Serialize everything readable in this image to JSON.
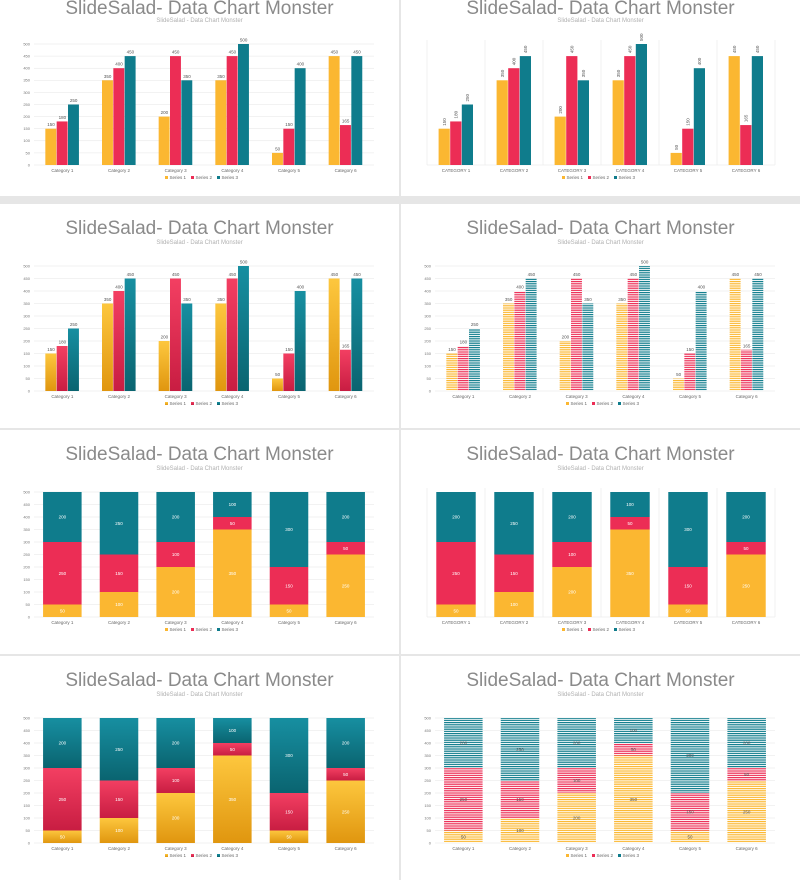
{
  "colors": {
    "series_1": "#fbb731",
    "series_2": "#ec2d55",
    "series_3": "#0f7c8c",
    "grid": "#e4e4e4"
  },
  "slides": [
    {
      "title": "SlideSalad- Data Chart Monster",
      "subtitle": "SlideSalad - Data Chart Monster"
    },
    {
      "title": "SlideSalad- Data Chart Monster",
      "subtitle": "SlideSalad - Data Chart Monster"
    },
    {
      "title": "SlideSalad- Data Chart Monster",
      "subtitle": "SlideSalad - Data Chart Monster"
    },
    {
      "title": "SlideSalad- Data Chart Monster",
      "subtitle": "SlideSalad - Data Chart Monster"
    },
    {
      "title": "SlideSalad- Data Chart Monster",
      "subtitle": "SlideSalad - Data Chart Monster"
    },
    {
      "title": "SlideSalad- Data Chart Monster",
      "subtitle": "SlideSalad - Data Chart Monster"
    },
    {
      "title": "SlideSalad- Data Chart Monster",
      "subtitle": "SlideSalad - Data Chart Monster"
    },
    {
      "title": "SlideSalad- Data Chart Monster",
      "subtitle": "SlideSalad - Data Chart Monster"
    }
  ],
  "chart_data": [
    {
      "type": "bar",
      "mode": "clustered",
      "style": "flat",
      "categories": [
        "Category 1",
        "Category 2",
        "Category 3",
        "Category 4",
        "Category 5",
        "Category 6"
      ],
      "series": [
        {
          "name": "Series 1",
          "values": [
            150,
            350,
            200,
            350,
            50,
            450
          ]
        },
        {
          "name": "Series 2",
          "values": [
            180,
            400,
            450,
            450,
            150,
            165
          ]
        },
        {
          "name": "Series 3",
          "values": [
            250,
            450,
            350,
            500,
            400,
            450
          ]
        }
      ],
      "ylim": [
        0,
        500
      ],
      "yticks": [
        0,
        50,
        100,
        150,
        200,
        250,
        300,
        350,
        400,
        450,
        500
      ],
      "legend": "bottom",
      "grid": true
    },
    {
      "type": "bar",
      "mode": "clustered",
      "style": "flat-vertical-labels",
      "categories": [
        "CATEGORY 1",
        "CATEGORY 2",
        "CATEGORY 3",
        "CATEGORY 4",
        "CATEGORY 5",
        "CATEGORY 6"
      ],
      "series": [
        {
          "name": "Series 1",
          "values": [
            150,
            350,
            200,
            350,
            50,
            450
          ]
        },
        {
          "name": "Series 2",
          "values": [
            180,
            400,
            450,
            450,
            150,
            165
          ]
        },
        {
          "name": "Series 3",
          "values": [
            250,
            450,
            350,
            500,
            400,
            450
          ]
        }
      ],
      "ylim": [
        0,
        500
      ],
      "legend": "bottom",
      "grid": false
    },
    {
      "type": "bar",
      "mode": "clustered",
      "style": "gradient",
      "categories": [
        "Category 1",
        "Category 2",
        "Category 3",
        "Category 4",
        "Category 5",
        "Category 6"
      ],
      "series": [
        {
          "name": "Series 1",
          "values": [
            150,
            350,
            200,
            350,
            50,
            450
          ]
        },
        {
          "name": "Series 2",
          "values": [
            180,
            400,
            450,
            450,
            150,
            165
          ]
        },
        {
          "name": "Series 3",
          "values": [
            250,
            450,
            350,
            500,
            400,
            450
          ]
        }
      ],
      "ylim": [
        0,
        500
      ],
      "yticks": [
        0,
        50,
        100,
        150,
        200,
        250,
        300,
        350,
        400,
        450,
        500
      ],
      "legend": "bottom",
      "grid": true
    },
    {
      "type": "bar",
      "mode": "clustered",
      "style": "striped",
      "categories": [
        "Category 1",
        "Category 2",
        "Category 3",
        "Category 4",
        "Category 5",
        "Category 6"
      ],
      "series": [
        {
          "name": "Series 1",
          "values": [
            150,
            350,
            200,
            350,
            50,
            450
          ]
        },
        {
          "name": "Series 2",
          "values": [
            180,
            400,
            450,
            450,
            150,
            165
          ]
        },
        {
          "name": "Series 3",
          "values": [
            250,
            450,
            350,
            500,
            400,
            450
          ]
        }
      ],
      "ylim": [
        0,
        500
      ],
      "yticks": [
        0,
        50,
        100,
        150,
        200,
        250,
        300,
        350,
        400,
        450,
        500
      ],
      "legend": "bottom",
      "grid": true
    },
    {
      "type": "bar",
      "mode": "stacked",
      "style": "flat",
      "categories": [
        "Category 1",
        "Category 2",
        "Category 3",
        "Category 4",
        "Category 5",
        "Category 6"
      ],
      "series": [
        {
          "name": "Series 1",
          "values": [
            50,
            100,
            200,
            350,
            50,
            250
          ]
        },
        {
          "name": "Series 2",
          "values": [
            250,
            150,
            100,
            50,
            150,
            50
          ]
        },
        {
          "name": "Series 3",
          "values": [
            200,
            250,
            200,
            100,
            300,
            200
          ]
        }
      ],
      "ylim": [
        0,
        500
      ],
      "yticks": [
        0,
        50,
        100,
        150,
        200,
        250,
        300,
        350,
        400,
        450,
        500
      ],
      "legend": "bottom",
      "grid": true
    },
    {
      "type": "bar",
      "mode": "stacked",
      "style": "flat-vertical-labels",
      "categories": [
        "CATEGORY 1",
        "CATEGORY 2",
        "CATEGORY 3",
        "CATEGORY 4",
        "CATEGORY 5",
        "CATEGORY 6"
      ],
      "series": [
        {
          "name": "Series 1",
          "values": [
            50,
            100,
            200,
            350,
            50,
            250
          ]
        },
        {
          "name": "Series 2",
          "values": [
            250,
            150,
            100,
            50,
            150,
            50
          ]
        },
        {
          "name": "Series 3",
          "values": [
            200,
            250,
            200,
            100,
            300,
            200
          ]
        }
      ],
      "ylim": [
        0,
        500
      ],
      "legend": "bottom",
      "grid": false
    },
    {
      "type": "bar",
      "mode": "stacked",
      "style": "gradient",
      "categories": [
        "Category 1",
        "Category 2",
        "Category 3",
        "Category 4",
        "Category 5",
        "Category 6"
      ],
      "series": [
        {
          "name": "Series 1",
          "values": [
            50,
            100,
            200,
            350,
            50,
            250
          ]
        },
        {
          "name": "Series 2",
          "values": [
            250,
            150,
            100,
            50,
            150,
            50
          ]
        },
        {
          "name": "Series 3",
          "values": [
            200,
            250,
            200,
            100,
            300,
            200
          ]
        }
      ],
      "ylim": [
        0,
        500
      ],
      "yticks": [
        0,
        50,
        100,
        150,
        200,
        250,
        300,
        350,
        400,
        450,
        500
      ],
      "legend": "bottom",
      "grid": true
    },
    {
      "type": "bar",
      "mode": "stacked",
      "style": "striped",
      "categories": [
        "Category 1",
        "Category 2",
        "Category 3",
        "Category 4",
        "Category 5",
        "Category 6"
      ],
      "series": [
        {
          "name": "Series 1",
          "values": [
            50,
            100,
            200,
            350,
            50,
            250
          ]
        },
        {
          "name": "Series 2",
          "values": [
            250,
            150,
            100,
            50,
            150,
            50
          ]
        },
        {
          "name": "Series 3",
          "values": [
            200,
            250,
            200,
            100,
            300,
            200
          ]
        }
      ],
      "ylim": [
        0,
        500
      ],
      "yticks": [
        0,
        50,
        100,
        150,
        200,
        250,
        300,
        350,
        400,
        450,
        500
      ],
      "legend": "bottom",
      "grid": true
    }
  ]
}
